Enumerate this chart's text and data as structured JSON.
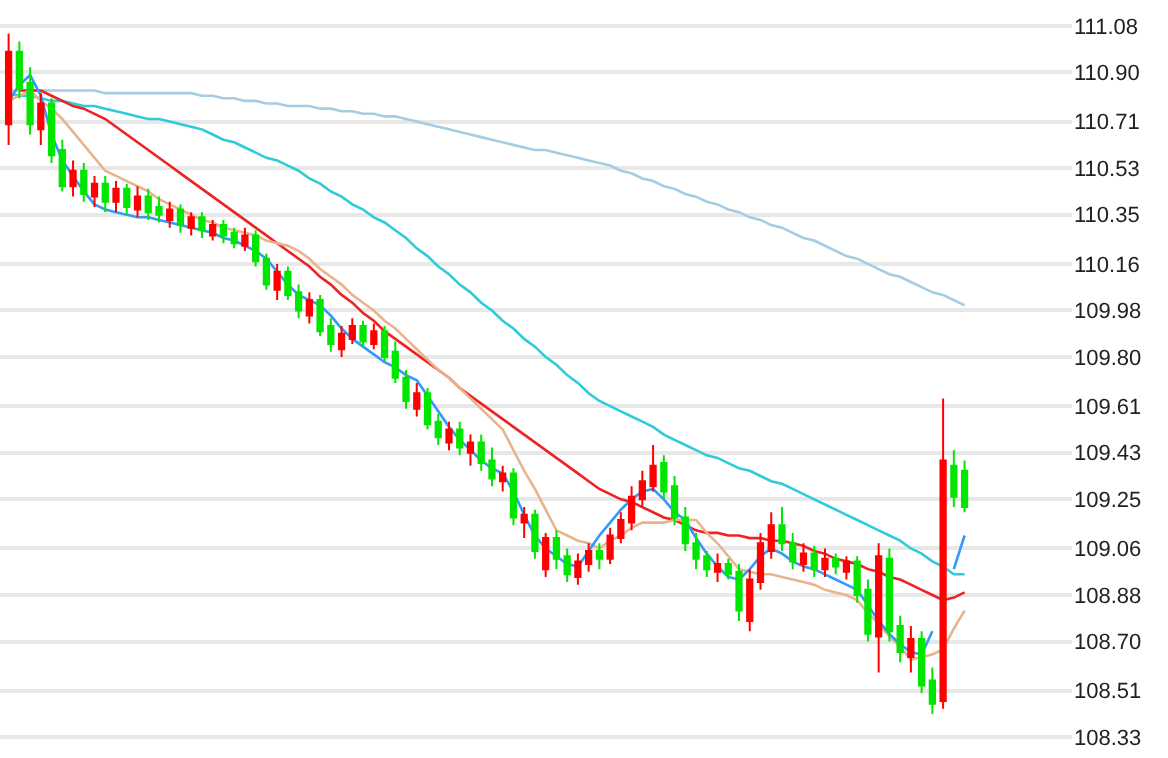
{
  "chart_data": {
    "type": "candlestick",
    "categories": [
      null,
      null,
      null,
      null,
      null,
      null,
      null,
      null,
      null,
      null,
      null,
      null,
      null,
      null,
      null,
      null,
      null,
      null,
      null,
      null,
      null,
      null,
      null,
      null,
      null,
      null,
      null,
      null,
      null,
      null,
      null,
      null,
      null,
      null,
      null,
      null,
      null,
      null,
      null,
      null,
      null,
      null,
      null,
      null,
      null,
      null,
      null,
      null,
      null,
      null,
      null,
      null,
      null,
      null,
      null,
      null,
      null,
      null,
      null,
      null,
      null,
      null,
      null,
      null,
      null,
      null,
      null,
      null,
      null,
      null,
      null,
      null,
      null,
      null,
      null,
      null,
      null,
      null,
      null,
      null,
      null,
      null,
      null,
      null,
      null,
      null,
      null,
      null,
      null,
      null
    ],
    "ohlc": [
      [
        110.7,
        111.05,
        110.62,
        110.98
      ],
      [
        110.98,
        111.02,
        110.8,
        110.84
      ],
      [
        110.86,
        110.92,
        110.66,
        110.7
      ],
      [
        110.68,
        110.82,
        110.62,
        110.78
      ],
      [
        110.78,
        110.8,
        110.55,
        110.58
      ],
      [
        110.6,
        110.64,
        110.44,
        110.46
      ],
      [
        110.46,
        110.56,
        110.42,
        110.52
      ],
      [
        110.52,
        110.55,
        110.4,
        110.43
      ],
      [
        110.42,
        110.5,
        110.38,
        110.47
      ],
      [
        110.47,
        110.5,
        110.36,
        110.4
      ],
      [
        110.4,
        110.48,
        110.36,
        110.45
      ],
      [
        110.45,
        110.47,
        110.35,
        110.38
      ],
      [
        110.37,
        110.46,
        110.34,
        110.42
      ],
      [
        110.42,
        110.45,
        110.33,
        110.36
      ],
      [
        110.38,
        110.42,
        110.32,
        110.35
      ],
      [
        110.33,
        110.4,
        110.3,
        110.37
      ],
      [
        110.37,
        110.39,
        110.28,
        110.31
      ],
      [
        110.3,
        110.36,
        110.27,
        110.34
      ],
      [
        110.34,
        110.36,
        110.26,
        110.29
      ],
      [
        110.27,
        110.33,
        110.25,
        110.31
      ],
      [
        110.31,
        110.33,
        110.24,
        110.27
      ],
      [
        110.28,
        110.3,
        110.22,
        110.24
      ],
      [
        110.23,
        110.3,
        110.21,
        110.27
      ],
      [
        110.27,
        110.29,
        110.15,
        110.17
      ],
      [
        110.18,
        110.2,
        110.06,
        110.08
      ],
      [
        110.06,
        110.16,
        110.02,
        110.13
      ],
      [
        110.13,
        110.15,
        110.02,
        110.04
      ],
      [
        110.05,
        110.08,
        109.95,
        109.98
      ],
      [
        109.96,
        110.05,
        109.93,
        110.02
      ],
      [
        110.02,
        110.04,
        109.88,
        109.9
      ],
      [
        109.92,
        109.95,
        109.82,
        109.85
      ],
      [
        109.83,
        109.92,
        109.8,
        109.89
      ],
      [
        109.87,
        109.95,
        109.85,
        109.92
      ],
      [
        109.92,
        109.94,
        109.84,
        109.86
      ],
      [
        109.85,
        109.93,
        109.83,
        109.9
      ],
      [
        109.9,
        109.92,
        109.78,
        109.8
      ],
      [
        109.82,
        109.86,
        109.7,
        109.72
      ],
      [
        109.72,
        109.75,
        109.6,
        109.63
      ],
      [
        109.6,
        109.7,
        109.57,
        109.66
      ],
      [
        109.66,
        109.68,
        109.52,
        109.54
      ],
      [
        109.55,
        109.58,
        109.46,
        109.49
      ],
      [
        109.47,
        109.55,
        109.44,
        109.52
      ],
      [
        109.52,
        109.55,
        109.42,
        109.45
      ],
      [
        109.43,
        109.5,
        109.38,
        109.47
      ],
      [
        109.47,
        109.5,
        109.36,
        109.39
      ],
      [
        109.4,
        109.45,
        109.3,
        109.33
      ],
      [
        109.32,
        109.38,
        109.28,
        109.35
      ],
      [
        109.35,
        109.37,
        109.15,
        109.18
      ],
      [
        109.16,
        109.22,
        109.1,
        109.19
      ],
      [
        109.19,
        109.21,
        109.02,
        109.05
      ],
      [
        108.98,
        109.12,
        108.95,
        109.1
      ],
      [
        109.1,
        109.13,
        108.98,
        109.02
      ],
      [
        109.03,
        109.06,
        108.93,
        108.96
      ],
      [
        108.95,
        109.04,
        108.92,
        109.01
      ],
      [
        109.0,
        109.08,
        108.97,
        109.05
      ],
      [
        109.05,
        109.08,
        108.98,
        109.02
      ],
      [
        109.02,
        109.14,
        109.0,
        109.11
      ],
      [
        109.1,
        109.2,
        109.08,
        109.17
      ],
      [
        109.16,
        109.3,
        109.13,
        109.26
      ],
      [
        109.25,
        109.36,
        109.22,
        109.32
      ],
      [
        109.3,
        109.46,
        109.28,
        109.38
      ],
      [
        109.39,
        109.42,
        109.25,
        109.28
      ],
      [
        109.3,
        109.34,
        109.15,
        109.18
      ],
      [
        109.18,
        109.22,
        109.05,
        109.08
      ],
      [
        109.08,
        109.12,
        108.98,
        109.02
      ],
      [
        109.03,
        109.05,
        108.95,
        108.98
      ],
      [
        108.97,
        109.04,
        108.93,
        109.0
      ],
      [
        109.0,
        109.02,
        108.94,
        108.96
      ],
      [
        108.97,
        109.0,
        108.78,
        108.82
      ],
      [
        108.78,
        108.98,
        108.74,
        108.94
      ],
      [
        108.93,
        109.12,
        108.9,
        109.08
      ],
      [
        109.05,
        109.2,
        109.02,
        109.15
      ],
      [
        109.15,
        109.22,
        109.05,
        109.08
      ],
      [
        109.08,
        109.12,
        108.98,
        109.01
      ],
      [
        109.0,
        109.08,
        108.97,
        109.04
      ],
      [
        109.04,
        109.07,
        108.95,
        108.98
      ],
      [
        108.98,
        109.06,
        108.95,
        109.02
      ],
      [
        109.02,
        109.04,
        108.96,
        108.99
      ],
      [
        108.97,
        109.03,
        108.94,
        109.01
      ],
      [
        109.01,
        109.03,
        108.85,
        108.88
      ],
      [
        108.9,
        108.94,
        108.7,
        108.73
      ],
      [
        108.72,
        109.08,
        108.58,
        109.03
      ],
      [
        109.02,
        109.06,
        108.7,
        108.74
      ],
      [
        108.76,
        108.8,
        108.62,
        108.66
      ],
      [
        108.64,
        108.76,
        108.58,
        108.71
      ],
      [
        108.71,
        108.74,
        108.5,
        108.53
      ],
      [
        108.55,
        108.6,
        108.42,
        108.46
      ],
      [
        108.47,
        109.64,
        108.44,
        109.4
      ],
      [
        109.38,
        109.44,
        109.22,
        109.26
      ],
      [
        109.36,
        109.4,
        109.2,
        109.22
      ]
    ],
    "colors": [
      "#ff0000",
      "#00e600",
      "#00e600",
      "#ff0000",
      "#00e600",
      "#00e600",
      "#ff0000",
      "#00e600",
      "#ff0000",
      "#00e600",
      "#ff0000",
      "#00e600",
      "#ff0000",
      "#00e600",
      "#00e600",
      "#ff0000",
      "#00e600",
      "#ff0000",
      "#00e600",
      "#ff0000",
      "#00e600",
      "#00e600",
      "#ff0000",
      "#00e600",
      "#00e600",
      "#ff0000",
      "#00e600",
      "#00e600",
      "#ff0000",
      "#00e600",
      "#00e600",
      "#ff0000",
      "#ff0000",
      "#00e600",
      "#ff0000",
      "#00e600",
      "#00e600",
      "#00e600",
      "#ff0000",
      "#00e600",
      "#00e600",
      "#ff0000",
      "#00e600",
      "#ff0000",
      "#00e600",
      "#00e600",
      "#ff0000",
      "#00e600",
      "#ff0000",
      "#00e600",
      "#ff0000",
      "#00e600",
      "#00e600",
      "#ff0000",
      "#ff0000",
      "#00e600",
      "#ff0000",
      "#ff0000",
      "#ff0000",
      "#ff0000",
      "#ff0000",
      "#00e600",
      "#00e600",
      "#00e600",
      "#00e600",
      "#00e600",
      "#ff0000",
      "#00e600",
      "#00e600",
      "#ff0000",
      "#ff0000",
      "#ff0000",
      "#00e600",
      "#00e600",
      "#ff0000",
      "#00e600",
      "#ff0000",
      "#00e600",
      "#ff0000",
      "#00e600",
      "#00e600",
      "#ff0000",
      "#00e600",
      "#00e600",
      "#ff0000",
      "#00e600",
      "#00e600",
      "#ff0000",
      "#00e600",
      "#00e600"
    ],
    "series": [
      {
        "type": "line",
        "color": "#a6cce4",
        "values": [
          110.83,
          110.83,
          110.83,
          110.83,
          110.83,
          110.83,
          110.83,
          110.83,
          110.83,
          110.82,
          110.82,
          110.82,
          110.82,
          110.82,
          110.82,
          110.82,
          110.82,
          110.82,
          110.81,
          110.81,
          110.8,
          110.8,
          110.79,
          110.79,
          110.78,
          110.78,
          110.77,
          110.77,
          110.77,
          110.76,
          110.76,
          110.75,
          110.75,
          110.74,
          110.74,
          110.73,
          110.73,
          110.72,
          110.71,
          110.7,
          110.69,
          110.68,
          110.67,
          110.66,
          110.65,
          110.64,
          110.63,
          110.62,
          110.61,
          110.6,
          110.6,
          110.59,
          110.58,
          110.57,
          110.56,
          110.55,
          110.54,
          110.52,
          110.51,
          110.49,
          110.48,
          110.46,
          110.45,
          110.43,
          110.42,
          110.4,
          110.39,
          110.37,
          110.36,
          110.34,
          110.33,
          110.31,
          110.3,
          110.28,
          110.26,
          110.25,
          110.23,
          110.21,
          110.19,
          110.18,
          110.16,
          110.14,
          110.12,
          110.11,
          110.09,
          110.07,
          110.05,
          110.04,
          110.02,
          110.0
        ]
      },
      {
        "type": "line",
        "color": "#2ecbd8",
        "values": [
          110.82,
          110.81,
          110.81,
          110.8,
          110.79,
          110.79,
          110.78,
          110.77,
          110.77,
          110.76,
          110.75,
          110.74,
          110.73,
          110.72,
          110.72,
          110.71,
          110.7,
          110.69,
          110.68,
          110.66,
          110.64,
          110.63,
          110.61,
          110.59,
          110.57,
          110.56,
          110.54,
          110.52,
          110.49,
          110.47,
          110.44,
          110.42,
          110.39,
          110.37,
          110.34,
          110.32,
          110.29,
          110.26,
          110.22,
          110.19,
          110.15,
          110.12,
          110.08,
          110.05,
          110.01,
          109.98,
          109.94,
          109.91,
          109.87,
          109.84,
          109.8,
          109.77,
          109.73,
          109.7,
          109.66,
          109.63,
          109.61,
          109.59,
          109.57,
          109.55,
          109.53,
          109.5,
          109.48,
          109.46,
          109.44,
          109.42,
          109.41,
          109.39,
          109.37,
          109.36,
          109.34,
          109.32,
          109.31,
          109.29,
          109.27,
          109.25,
          109.23,
          109.21,
          109.19,
          109.17,
          109.15,
          109.13,
          109.11,
          109.09,
          109.06,
          109.04,
          109.01,
          108.99,
          108.96,
          108.96
        ]
      },
      {
        "type": "line",
        "color": "#ee2222",
        "values": [
          null,
          110.83,
          110.83,
          110.83,
          110.81,
          110.79,
          110.77,
          110.76,
          110.74,
          110.72,
          110.69,
          110.66,
          110.63,
          110.6,
          110.57,
          110.54,
          110.51,
          110.48,
          110.45,
          110.42,
          110.39,
          110.36,
          110.33,
          110.3,
          110.27,
          110.24,
          110.21,
          110.18,
          110.15,
          110.11,
          110.08,
          110.04,
          110.01,
          109.97,
          109.94,
          109.9,
          109.87,
          109.84,
          109.81,
          109.78,
          109.75,
          109.72,
          109.68,
          109.65,
          109.62,
          109.59,
          109.56,
          109.53,
          109.5,
          109.47,
          109.44,
          109.41,
          109.38,
          109.35,
          109.32,
          109.29,
          109.27,
          109.25,
          109.24,
          109.22,
          109.2,
          109.18,
          109.17,
          109.15,
          109.13,
          109.12,
          109.12,
          109.11,
          109.11,
          109.1,
          109.1,
          109.09,
          109.09,
          109.08,
          109.07,
          109.05,
          109.04,
          109.02,
          109.01,
          109.0,
          108.98,
          108.97,
          108.95,
          108.94,
          108.92,
          108.9,
          108.88,
          108.86,
          108.87,
          108.89
        ]
      },
      {
        "type": "line",
        "color": "#e8b48c",
        "values": [
          110.79,
          110.81,
          110.83,
          110.79,
          110.76,
          110.72,
          110.67,
          110.62,
          110.57,
          110.52,
          110.5,
          110.48,
          110.46,
          110.44,
          110.41,
          110.39,
          110.37,
          110.35,
          110.33,
          110.32,
          110.3,
          110.29,
          110.28,
          110.27,
          110.25,
          110.24,
          110.23,
          110.21,
          110.18,
          110.14,
          110.11,
          110.08,
          110.04,
          110.01,
          109.98,
          109.94,
          109.91,
          109.87,
          109.83,
          109.79,
          109.75,
          109.72,
          109.68,
          109.64,
          109.6,
          109.56,
          109.52,
          109.44,
          109.36,
          109.29,
          109.21,
          109.13,
          109.11,
          109.09,
          109.08,
          109.06,
          109.09,
          109.11,
          109.14,
          109.16,
          109.16,
          109.16,
          109.17,
          109.17,
          109.17,
          109.12,
          109.08,
          109.03,
          108.98,
          108.97,
          108.96,
          108.96,
          108.95,
          108.94,
          108.93,
          108.92,
          108.9,
          108.89,
          108.88,
          108.86,
          108.81,
          108.77,
          108.72,
          108.68,
          108.63,
          108.64,
          108.65,
          108.67,
          108.75,
          108.82
        ]
      },
      {
        "type": "line",
        "color": "#3399ff",
        "values": [
          110.79,
          110.85,
          110.89,
          110.81,
          110.66,
          110.56,
          110.5,
          110.44,
          110.39,
          110.37,
          110.36,
          110.35,
          110.34,
          110.34,
          110.33,
          110.32,
          110.31,
          110.3,
          110.29,
          110.28,
          110.26,
          110.25,
          110.23,
          110.21,
          110.18,
          110.13,
          110.08,
          110.04,
          110.02,
          110.0,
          109.96,
          109.91,
          109.87,
          109.84,
          109.81,
          109.78,
          109.76,
          109.73,
          109.71,
          109.65,
          109.59,
          109.53,
          109.48,
          109.44,
          109.4,
          109.37,
          109.35,
          109.28,
          109.19,
          109.11,
          109.06,
          109.03,
          109.0,
          108.99,
          109.05,
          109.11,
          109.16,
          109.21,
          109.25,
          109.28,
          109.29,
          109.25,
          109.2,
          109.17,
          109.1,
          109.04,
          108.99,
          108.95,
          108.94,
          108.98,
          109.03,
          109.06,
          109.04,
          109.01,
          108.99,
          108.98,
          108.96,
          108.94,
          108.92,
          108.9,
          108.84,
          108.78,
          108.73,
          108.69,
          108.66,
          108.65,
          108.74,
          null,
          108.98,
          109.11
        ]
      }
    ],
    "ylim": [
      108.25,
      111.18
    ],
    "yticks": [
      111.08,
      {
        "value": 110.9,
        "label": "110.90"
      },
      110.71,
      110.53,
      110.35,
      110.16,
      109.98,
      {
        "value": 109.8,
        "label": "109.80"
      },
      109.61,
      109.43,
      109.25,
      109.06,
      108.88,
      {
        "value": 108.7,
        "label": "108.70"
      },
      108.51,
      108.33
    ],
    "grid": "y",
    "tick_labels": "y"
  }
}
